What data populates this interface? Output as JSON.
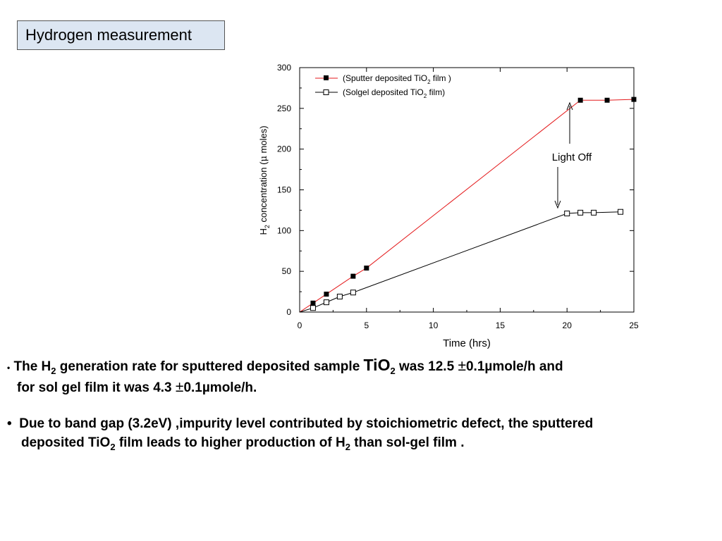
{
  "slide": {
    "title": "Hydrogen measurement"
  },
  "chart_data": {
    "type": "line",
    "title": "",
    "xlabel": "Time (hrs)",
    "ylabel_parts": [
      "H",
      "2",
      " concentration (",
      "μ",
      " moles)"
    ],
    "xlim": [
      0,
      25
    ],
    "ylim": [
      0,
      300
    ],
    "xticks": [
      0,
      5,
      10,
      15,
      20,
      25
    ],
    "yticks": [
      0,
      50,
      100,
      150,
      200,
      250,
      300
    ],
    "grid": false,
    "legend_position": "top-left",
    "series": [
      {
        "label_parts": [
          "(Sputter deposited TiO",
          "2",
          " film )"
        ],
        "color": "#e41a1c",
        "marker": "filled-square",
        "x": [
          0,
          1,
          2,
          4,
          5,
          21,
          23,
          25
        ],
        "y": [
          0,
          11,
          22,
          44,
          54,
          260,
          260,
          261
        ]
      },
      {
        "label_parts": [
          "(Solgel deposited TiO",
          "2",
          " film)"
        ],
        "color": "#000000",
        "marker": "open-square",
        "x": [
          0,
          1,
          2,
          3,
          4,
          20,
          21,
          22,
          24
        ],
        "y": [
          0,
          5,
          12,
          19,
          24,
          121,
          122,
          122,
          123
        ]
      }
    ],
    "annotation": {
      "text": "Light Off"
    }
  },
  "bullets": [
    {
      "symbol": "•",
      "line1": [
        "The H",
        "2",
        " generation rate for sputtered deposited sample ",
        "TiO",
        "2",
        " was 12.5 ",
        "±",
        "0.1µmole/h and"
      ],
      "line2": [
        "for sol gel film it was 4.3 ",
        "±",
        "0.1µmole/h."
      ]
    },
    {
      "symbol": "•",
      "line1": [
        "Due to band gap (3.2eV) ,impurity level contributed by stoichiometric defect, the sputtered"
      ],
      "line2": [
        "deposited TiO",
        "2",
        " film leads to higher production of H",
        "2",
        " than sol-gel film ."
      ]
    }
  ]
}
